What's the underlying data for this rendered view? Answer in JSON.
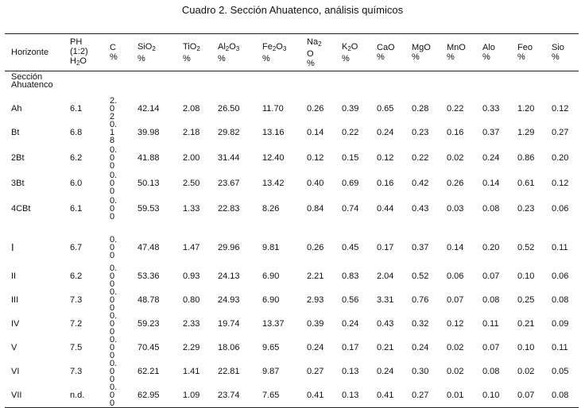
{
  "title": "Cuadro 2. Sección Ahuatenco, análisis químicos",
  "columns": [
    {
      "label": "Horizonte",
      "sub": "",
      "after": "",
      "unit": ""
    },
    {
      "label": "PH (1:2) H",
      "sub": "2",
      "after": "O",
      "unit": ""
    },
    {
      "label": "C",
      "sub": "",
      "after": "",
      "unit": "%"
    },
    {
      "label": "SiO",
      "sub": "2",
      "after": "",
      "unit": "%"
    },
    {
      "label": "TiO",
      "sub": "2",
      "after": "",
      "unit": "%"
    },
    {
      "label": "Al",
      "sub": "2",
      "after": "O",
      "sub2": "3",
      "unit": "%"
    },
    {
      "label": "Fe",
      "sub": "2",
      "after": "O",
      "sub2": "3",
      "unit": "%"
    },
    {
      "label": "Na",
      "sub": "2",
      "after": "O",
      "unit": "%"
    },
    {
      "label": "K",
      "sub": "2",
      "after": "O",
      "unit": "%"
    },
    {
      "label": "CaO",
      "sub": "",
      "after": "",
      "unit": "%"
    },
    {
      "label": "MgO",
      "sub": "",
      "after": "",
      "unit": "%"
    },
    {
      "label": "MnO",
      "sub": "",
      "after": "",
      "unit": "%"
    },
    {
      "label": "Alo",
      "sub": "",
      "after": "",
      "unit": "%"
    },
    {
      "label": "Feo",
      "sub": "",
      "after": "",
      "unit": "%"
    },
    {
      "label": "Sio",
      "sub": "",
      "after": "",
      "unit": "%"
    }
  ],
  "section_label": "Sección Ahuatenco",
  "rows": [
    {
      "h": "Ah",
      "v": [
        "6.1",
        "2.02",
        "42.14",
        "2.08",
        "26.50",
        "11.70",
        "0.26",
        "0.39",
        "0.65",
        "0.28",
        "0.22",
        "0.33",
        "1.20",
        "0.12"
      ]
    },
    {
      "h": "Bt",
      "v": [
        "6.8",
        "0.18",
        "39.98",
        "2.18",
        "29.82",
        "13.16",
        "0.14",
        "0.22",
        "0.24",
        "0.23",
        "0.16",
        "0.37",
        "1.29",
        "0.27"
      ]
    },
    {
      "h": "2Bt",
      "v": [
        "6.2",
        "0.00",
        "41.88",
        "2.00",
        "31.44",
        "12.40",
        "0.12",
        "0.15",
        "0.12",
        "0.22",
        "0.02",
        "0.24",
        "0.86",
        "0.20"
      ]
    },
    {
      "h": "3Bt",
      "v": [
        "6.0",
        "0.00",
        "50.13",
        "2.50",
        "23.67",
        "13.42",
        "0.40",
        "0.69",
        "0.16",
        "0.42",
        "0.26",
        "0.14",
        "0.61",
        "0.12"
      ]
    },
    {
      "h": "4CBt",
      "v": [
        "6.1",
        "0.00",
        "59.53",
        "1.33",
        "22.83",
        "8.26",
        "0.84",
        "0.74",
        "0.44",
        "0.43",
        "0.03",
        "0.08",
        "0.23",
        "0.06"
      ]
    },
    {
      "h": "I",
      "v": [
        "6.7",
        "0.00",
        "47.48",
        "1.47",
        "29.96",
        "9.81",
        "0.26",
        "0.45",
        "0.17",
        "0.37",
        "0.14",
        "0.20",
        "0.52",
        "0.11"
      ]
    },
    {
      "h": "II",
      "v": [
        "6.2",
        "0.00",
        "53.36",
        "0.93",
        "24.13",
        "6.90",
        "2.21",
        "0.83",
        "2.04",
        "0.52",
        "0.06",
        "0.07",
        "0.10",
        "0.06"
      ]
    },
    {
      "h": "III",
      "v": [
        "7.3",
        "0.00",
        "48.78",
        "0.80",
        "24.93",
        "6.90",
        "2.93",
        "0.56",
        "3.31",
        "0.76",
        "0.07",
        "0.08",
        "0.25",
        "0.08"
      ]
    },
    {
      "h": "IV",
      "v": [
        "7.2",
        "0.00",
        "59.23",
        "2.33",
        "19.74",
        "13.37",
        "0.39",
        "0.24",
        "0.43",
        "0.32",
        "0.12",
        "0.11",
        "0.21",
        "0.09"
      ]
    },
    {
      "h": "V",
      "v": [
        "7.5",
        "0.00",
        "70.45",
        "2.29",
        "18.06",
        "9.65",
        "0.24",
        "0.17",
        "0.21",
        "0.24",
        "0.02",
        "0.07",
        "0.10",
        "0.11"
      ]
    },
    {
      "h": "VI",
      "v": [
        "7.3",
        "0.00",
        "62.21",
        "1.41",
        "22.81",
        "9.87",
        "0.27",
        "0.13",
        "0.24",
        "0.30",
        "0.02",
        "0.08",
        "0.02",
        "0.05"
      ]
    },
    {
      "h": "VII",
      "v": [
        "n.d.",
        "0.00",
        "62.95",
        "1.09",
        "23.74",
        "7.65",
        "0.41",
        "0.13",
        "0.41",
        "0.27",
        "0.01",
        "0.10",
        "0.07",
        "0.08"
      ]
    }
  ]
}
